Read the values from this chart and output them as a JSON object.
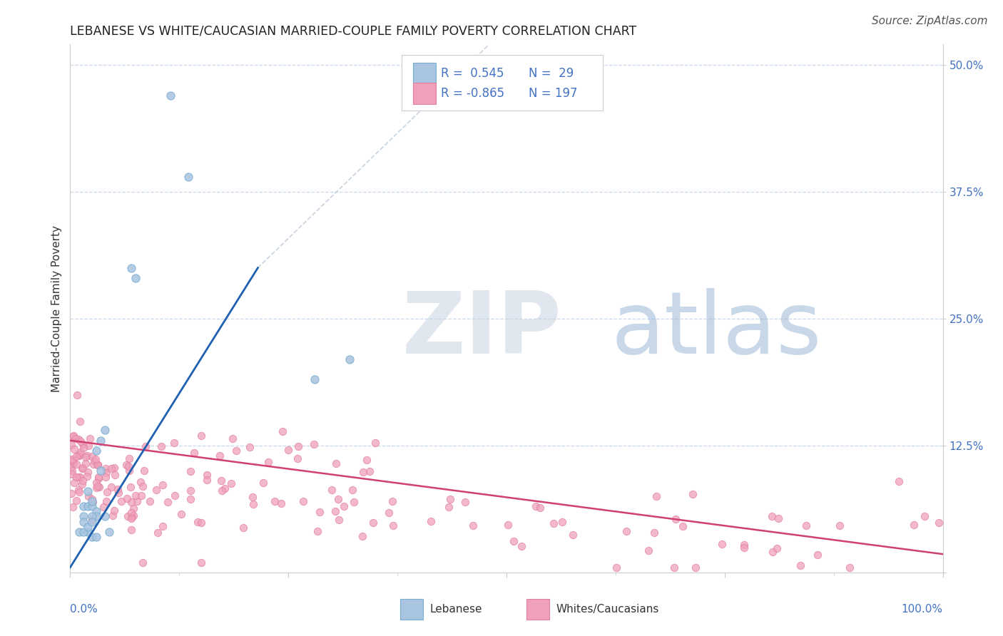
{
  "title": "LEBANESE VS WHITE/CAUCASIAN MARRIED-COUPLE FAMILY POVERTY CORRELATION CHART",
  "source": "Source: ZipAtlas.com",
  "ylabel": "Married-Couple Family Poverty",
  "ytick_values": [
    0.0,
    0.125,
    0.25,
    0.375,
    0.5
  ],
  "ytick_labels": [
    "",
    "12.5%",
    "25.0%",
    "37.5%",
    "50.0%"
  ],
  "xlim": [
    0.0,
    1.0
  ],
  "ylim": [
    0.0,
    0.52
  ],
  "blue_color": "#a8c4e0",
  "blue_edge_color": "#7aaed0",
  "blue_line_color": "#2060b0",
  "pink_color": "#f0a0b8",
  "pink_edge_color": "#e080a0",
  "pink_line_color": "#d04070",
  "diag_color": "#b8c8d8",
  "grid_color": "#c8d8ea",
  "background_color": "#ffffff",
  "watermark_color": "#ccd8e8",
  "title_color": "#222222",
  "label_color": "#333333",
  "tick_color": "#4472c4",
  "source_color": "#555555",
  "legend_text_color": "#4472c4",
  "blue_scatter_x": [
    0.115,
    0.135,
    0.07,
    0.075,
    0.32,
    0.28,
    0.015,
    0.02,
    0.025,
    0.03,
    0.015,
    0.03,
    0.025,
    0.04,
    0.035,
    0.02,
    0.01,
    0.02,
    0.015,
    0.025,
    0.03,
    0.04,
    0.035,
    0.025,
    0.015,
    0.02,
    0.025,
    0.03,
    0.045
  ],
  "blue_scatter_y": [
    0.47,
    0.39,
    0.3,
    0.29,
    0.21,
    0.19,
    0.065,
    0.065,
    0.065,
    0.06,
    0.055,
    0.055,
    0.055,
    0.055,
    0.1,
    0.08,
    0.04,
    0.04,
    0.04,
    0.035,
    0.035,
    0.14,
    0.13,
    0.07,
    0.05,
    0.045,
    0.05,
    0.12,
    0.04
  ],
  "blue_line_x": [
    0.0,
    0.215
  ],
  "blue_line_y": [
    0.005,
    0.3
  ],
  "diag_line_x": [
    0.215,
    0.48
  ],
  "diag_line_y": [
    0.3,
    0.52
  ],
  "pink_line_x": [
    0.0,
    1.0
  ],
  "pink_line_y": [
    0.13,
    0.018
  ],
  "title_fontsize": 12.5,
  "ylabel_fontsize": 11,
  "tick_fontsize": 11,
  "legend_fontsize": 12,
  "source_fontsize": 11
}
